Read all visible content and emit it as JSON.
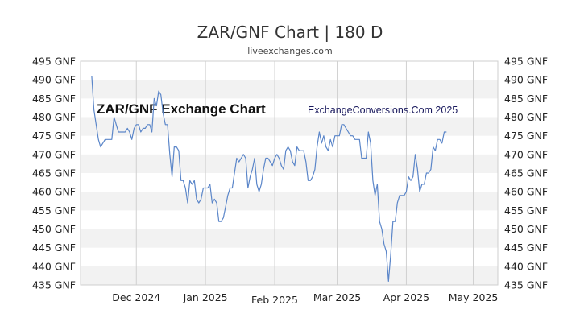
{
  "chart_data": {
    "type": "line",
    "title": "ZAR/GNF Chart | 180 D",
    "subtitle": "liveexchanges.com",
    "watermark_left": "ZAR/GNF Exchange Chart",
    "watermark_right": "ExchangeConversions.Com 2025",
    "y_tick_labels": [
      "495 GNF",
      "490 GNF",
      "485 GNF",
      "480 GNF",
      "475 GNF",
      "470 GNF",
      "465 GNF",
      "460 GNF",
      "455 GNF",
      "450 GNF",
      "445 GNF",
      "440 GNF",
      "435 GNF"
    ],
    "y_tick_values": [
      495,
      490,
      485,
      480,
      475,
      470,
      465,
      460,
      455,
      450,
      445,
      440,
      435
    ],
    "ylim": [
      435,
      495
    ],
    "x_ticks": [
      {
        "label": "Dec 2024",
        "day": 25
      },
      {
        "label": "Jan 2025",
        "day": 56
      },
      {
        "label": "Feb 2025",
        "day": 87
      },
      {
        "label": "Mar 2025",
        "day": 115
      },
      {
        "label": "Apr 2025",
        "day": 146
      },
      {
        "label": "May 2025",
        "day": 176
      }
    ],
    "xlim": [
      0,
      187
    ],
    "grid": true,
    "line_color": "#5b86c9",
    "series": [
      {
        "values": [
          [
            5,
            491
          ],
          [
            6,
            482
          ],
          [
            7,
            478
          ],
          [
            8,
            474
          ],
          [
            9,
            472
          ],
          [
            10,
            473
          ],
          [
            11,
            474
          ],
          [
            13,
            474
          ],
          [
            14,
            474
          ],
          [
            15,
            480
          ],
          [
            16,
            478
          ],
          [
            17,
            476
          ],
          [
            18,
            476
          ],
          [
            19,
            476
          ],
          [
            20,
            476
          ],
          [
            21,
            477
          ],
          [
            22,
            476
          ],
          [
            23,
            474
          ],
          [
            24,
            477
          ],
          [
            25,
            478
          ],
          [
            26,
            478
          ],
          [
            27,
            476
          ],
          [
            28,
            477
          ],
          [
            29,
            477
          ],
          [
            30,
            478
          ],
          [
            31,
            478
          ],
          [
            32,
            476
          ],
          [
            33,
            485
          ],
          [
            34,
            483
          ],
          [
            35,
            487
          ],
          [
            36,
            486
          ],
          [
            37,
            481
          ],
          [
            38,
            478
          ],
          [
            39,
            478
          ],
          [
            40,
            470
          ],
          [
            41,
            464
          ],
          [
            42,
            472
          ],
          [
            43,
            472
          ],
          [
            44,
            471
          ],
          [
            45,
            463
          ],
          [
            46,
            463
          ],
          [
            47,
            461
          ],
          [
            48,
            457
          ],
          [
            49,
            463
          ],
          [
            50,
            462
          ],
          [
            51,
            463
          ],
          [
            52,
            458
          ],
          [
            53,
            457
          ],
          [
            54,
            458
          ],
          [
            55,
            461
          ],
          [
            56,
            461
          ],
          [
            57,
            461
          ],
          [
            58,
            462
          ],
          [
            59,
            457
          ],
          [
            60,
            458
          ],
          [
            61,
            457
          ],
          [
            62,
            452
          ],
          [
            63,
            452
          ],
          [
            64,
            453
          ],
          [
            65,
            456
          ],
          [
            66,
            459
          ],
          [
            67,
            461
          ],
          [
            68,
            461
          ],
          [
            69,
            465
          ],
          [
            70,
            469
          ],
          [
            71,
            468
          ],
          [
            72,
            469
          ],
          [
            73,
            470
          ],
          [
            74,
            469
          ],
          [
            75,
            461
          ],
          [
            76,
            464
          ],
          [
            77,
            466
          ],
          [
            78,
            469
          ],
          [
            79,
            462
          ],
          [
            80,
            460
          ],
          [
            81,
            462
          ],
          [
            82,
            466
          ],
          [
            83,
            469
          ],
          [
            84,
            469
          ],
          [
            85,
            468
          ],
          [
            86,
            467
          ],
          [
            87,
            469
          ],
          [
            88,
            470
          ],
          [
            89,
            469
          ],
          [
            90,
            467
          ],
          [
            91,
            466
          ],
          [
            92,
            471
          ],
          [
            93,
            472
          ],
          [
            94,
            471
          ],
          [
            95,
            468
          ],
          [
            96,
            467
          ],
          [
            97,
            472
          ],
          [
            98,
            471
          ],
          [
            99,
            471
          ],
          [
            100,
            471
          ],
          [
            101,
            468
          ],
          [
            102,
            463
          ],
          [
            103,
            463
          ],
          [
            104,
            464
          ],
          [
            105,
            466
          ],
          [
            106,
            472
          ],
          [
            107,
            476
          ],
          [
            108,
            473
          ],
          [
            109,
            475
          ],
          [
            110,
            472
          ],
          [
            111,
            471
          ],
          [
            112,
            474
          ],
          [
            113,
            472
          ],
          [
            114,
            475
          ],
          [
            115,
            475
          ],
          [
            116,
            475
          ],
          [
            117,
            478
          ],
          [
            118,
            478
          ],
          [
            119,
            477
          ],
          [
            120,
            476
          ],
          [
            121,
            475
          ],
          [
            122,
            475
          ],
          [
            123,
            474
          ],
          [
            124,
            474
          ],
          [
            125,
            474
          ],
          [
            126,
            469
          ],
          [
            127,
            469
          ],
          [
            128,
            469
          ],
          [
            129,
            476
          ],
          [
            130,
            473
          ],
          [
            131,
            463
          ],
          [
            132,
            459
          ],
          [
            133,
            462
          ],
          [
            134,
            452
          ],
          [
            135,
            450
          ],
          [
            136,
            446
          ],
          [
            137,
            444
          ],
          [
            138,
            436
          ],
          [
            139,
            443
          ],
          [
            140,
            452
          ],
          [
            141,
            452
          ],
          [
            142,
            457
          ],
          [
            143,
            459
          ],
          [
            144,
            459
          ],
          [
            145,
            459
          ],
          [
            146,
            460
          ],
          [
            147,
            464
          ],
          [
            148,
            463
          ],
          [
            149,
            464
          ],
          [
            150,
            470
          ],
          [
            151,
            466
          ],
          [
            152,
            460
          ],
          [
            153,
            462
          ],
          [
            154,
            462
          ],
          [
            155,
            465
          ],
          [
            156,
            465
          ],
          [
            157,
            466
          ],
          [
            158,
            472
          ],
          [
            159,
            471
          ],
          [
            160,
            474
          ],
          [
            161,
            474
          ],
          [
            162,
            473
          ],
          [
            163,
            476
          ],
          [
            164,
            476
          ]
        ]
      }
    ]
  }
}
